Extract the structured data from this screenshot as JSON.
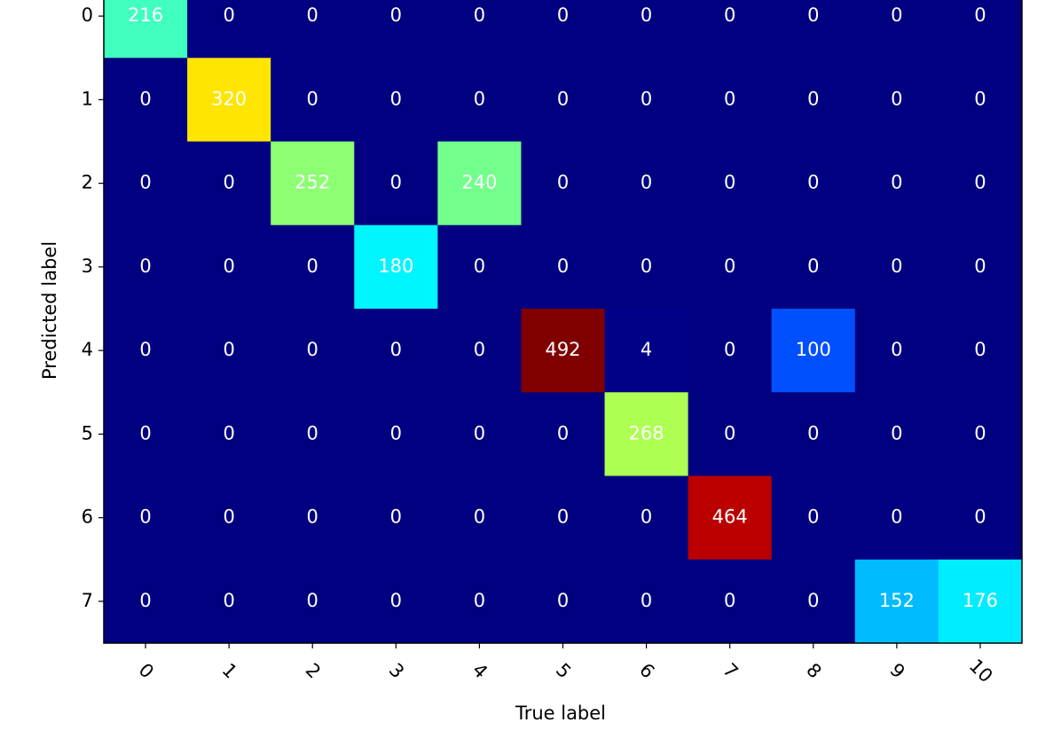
{
  "chart_data": {
    "type": "heatmap",
    "colormap": "jet",
    "x_label": "True label",
    "y_label": "Predicted label",
    "x_categories": [
      "0",
      "1",
      "2",
      "3",
      "4",
      "5",
      "6",
      "7",
      "8",
      "9",
      "10"
    ],
    "y_categories": [
      "0",
      "1",
      "2",
      "3",
      "4",
      "5",
      "6",
      "7"
    ],
    "values": [
      [
        216,
        0,
        0,
        0,
        0,
        0,
        0,
        0,
        0,
        0,
        0
      ],
      [
        0,
        320,
        0,
        0,
        0,
        0,
        0,
        0,
        0,
        0,
        0
      ],
      [
        0,
        0,
        252,
        0,
        240,
        0,
        0,
        0,
        0,
        0,
        0
      ],
      [
        0,
        0,
        0,
        180,
        0,
        0,
        0,
        0,
        0,
        0,
        0
      ],
      [
        0,
        0,
        0,
        0,
        0,
        492,
        4,
        0,
        100,
        0,
        0
      ],
      [
        0,
        0,
        0,
        0,
        0,
        0,
        268,
        0,
        0,
        0,
        0
      ],
      [
        0,
        0,
        0,
        0,
        0,
        0,
        0,
        464,
        0,
        0,
        0
      ],
      [
        0,
        0,
        0,
        0,
        0,
        0,
        0,
        0,
        0,
        152,
        176
      ]
    ]
  }
}
